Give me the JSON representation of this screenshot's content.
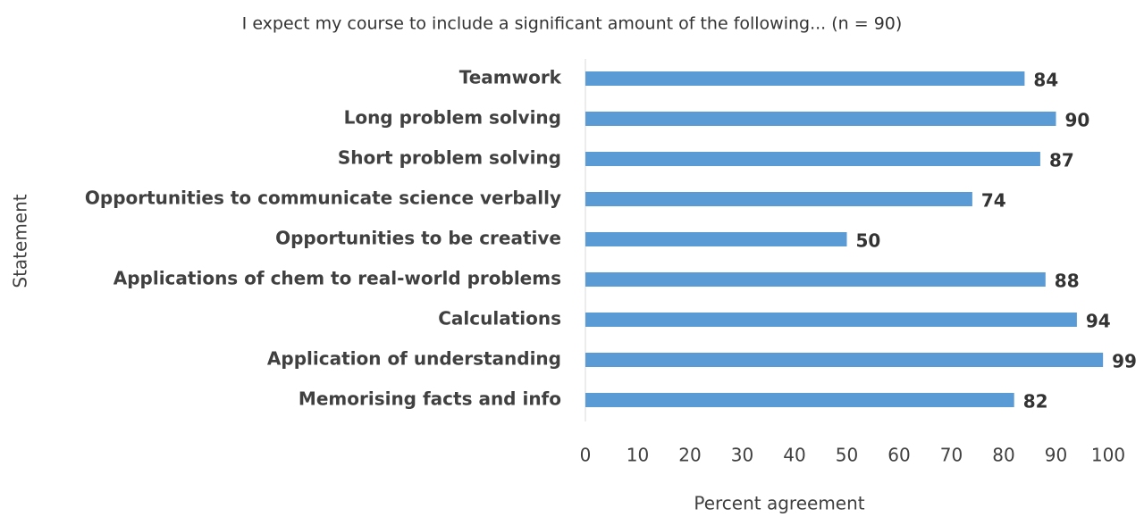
{
  "chart_data": {
    "type": "barh",
    "title": "I expect my course to include a significant amount of the following... (n = 90)",
    "xlabel": "Percent agreement",
    "ylabel": "Statement",
    "categories": [
      "Teamwork",
      "Long problem solving",
      "Short problem solving",
      "Opportunities to communicate science verbally",
      "Opportunities to be creative",
      "Applications of chem to real-world problems",
      "Calculations",
      "Application of understanding",
      "Memorising facts and info"
    ],
    "values": [
      84,
      90,
      87,
      74,
      50,
      88,
      94,
      99,
      82
    ],
    "color": "#5b9bd5",
    "xlim": [
      0,
      100
    ],
    "xticks": [
      0,
      10,
      20,
      30,
      40,
      50,
      60,
      70,
      80,
      90,
      100
    ],
    "grid": false
  }
}
